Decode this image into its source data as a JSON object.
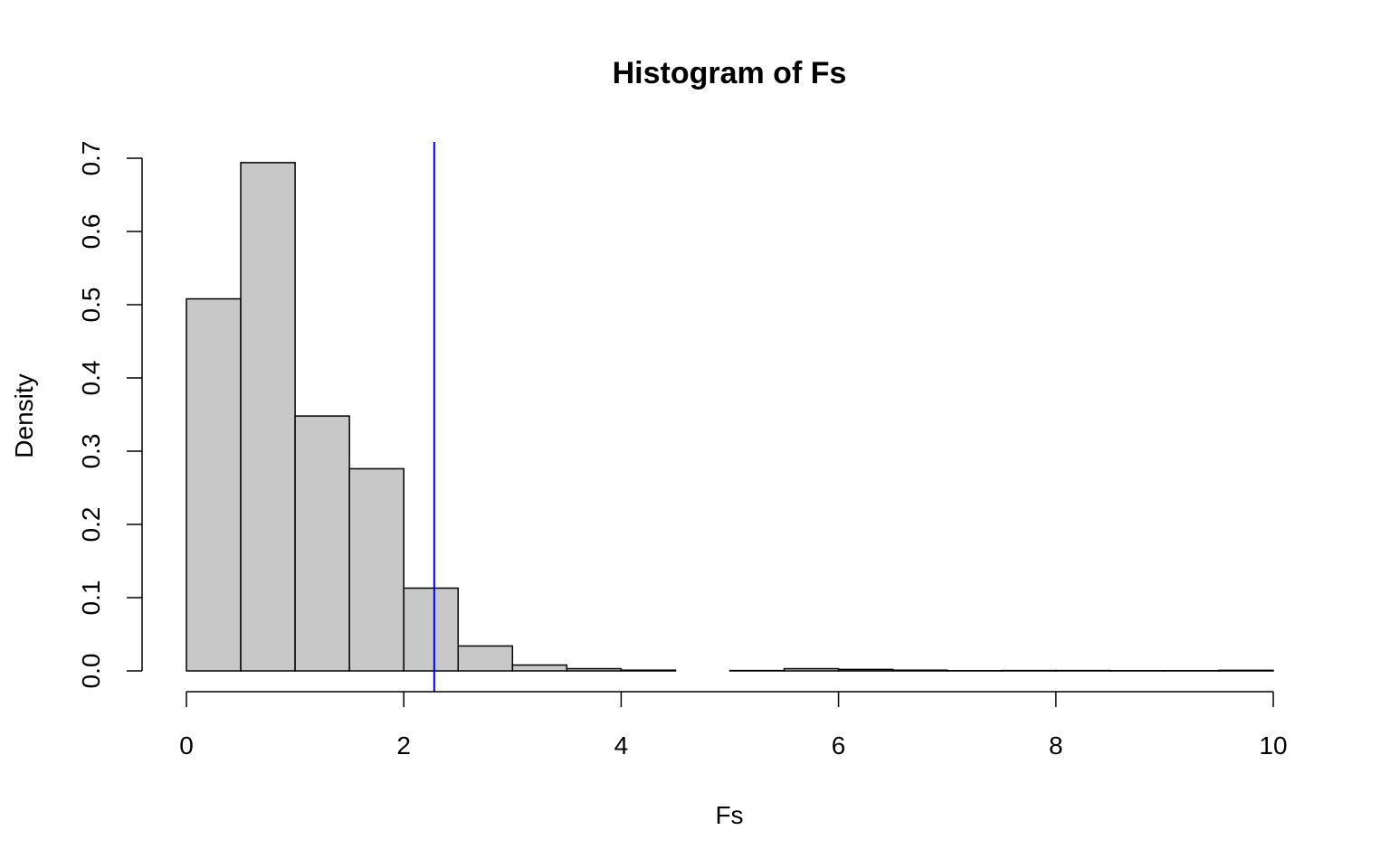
{
  "chart_data": {
    "type": "bar",
    "title": "Histogram of Fs",
    "xlabel": "Fs",
    "ylabel": "Density",
    "xlim": [
      0,
      10
    ],
    "ylim": [
      0,
      0.7
    ],
    "bin_width": 0.5,
    "bins": [
      {
        "x0": 0.0,
        "x1": 0.5,
        "density": 0.508
      },
      {
        "x0": 0.5,
        "x1": 1.0,
        "density": 0.694
      },
      {
        "x0": 1.0,
        "x1": 1.5,
        "density": 0.348
      },
      {
        "x0": 1.5,
        "x1": 2.0,
        "density": 0.276
      },
      {
        "x0": 2.0,
        "x1": 2.5,
        "density": 0.113
      },
      {
        "x0": 2.5,
        "x1": 3.0,
        "density": 0.034
      },
      {
        "x0": 3.0,
        "x1": 3.5,
        "density": 0.008
      },
      {
        "x0": 3.5,
        "x1": 4.0,
        "density": 0.003
      },
      {
        "x0": 4.0,
        "x1": 4.5,
        "density": 0.001
      },
      {
        "x0": 4.5,
        "x1": 5.0,
        "density": 0.0
      },
      {
        "x0": 5.0,
        "x1": 5.5,
        "density": 0.0005
      },
      {
        "x0": 5.5,
        "x1": 6.0,
        "density": 0.003
      },
      {
        "x0": 6.0,
        "x1": 6.5,
        "density": 0.002
      },
      {
        "x0": 6.5,
        "x1": 7.0,
        "density": 0.001
      },
      {
        "x0": 7.0,
        "x1": 7.5,
        "density": 0.0003
      },
      {
        "x0": 7.5,
        "x1": 8.0,
        "density": 0.0005
      },
      {
        "x0": 8.0,
        "x1": 8.5,
        "density": 0.0005
      },
      {
        "x0": 8.5,
        "x1": 9.0,
        "density": 0.0003
      },
      {
        "x0": 9.0,
        "x1": 9.5,
        "density": 0.0003
      },
      {
        "x0": 9.5,
        "x1": 10.0,
        "density": 0.0008
      }
    ],
    "x_ticks": [
      "0",
      "2",
      "4",
      "6",
      "8",
      "10"
    ],
    "y_ticks": [
      "0.0",
      "0.1",
      "0.2",
      "0.3",
      "0.4",
      "0.5",
      "0.6",
      "0.7"
    ],
    "reference_line": {
      "x": 2.28,
      "color": "#0000ff"
    },
    "bar_fill": "#c8c8c8",
    "bar_stroke": "#000000",
    "grid": false,
    "legend": "none"
  }
}
